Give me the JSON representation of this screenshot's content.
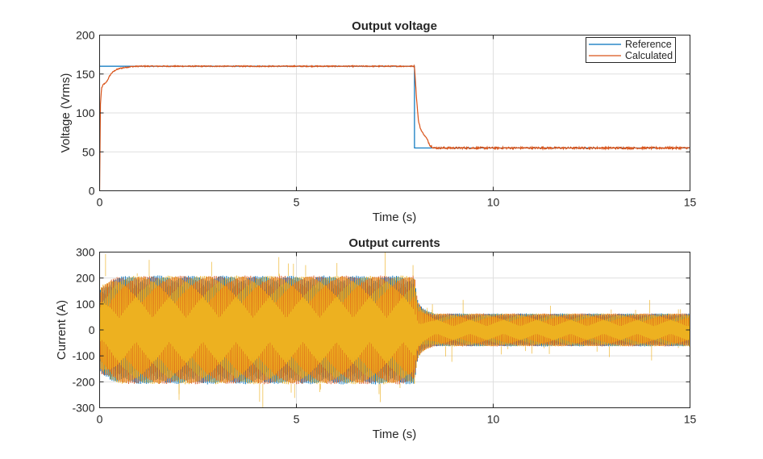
{
  "colors": {
    "reference": "#0072bd",
    "calculated": "#d95319",
    "phase_a": "#0072bd",
    "phase_b": "#d95319",
    "phase_c": "#edb120",
    "axis": "#262626",
    "grid": "#dfdfdf"
  },
  "chart_data": [
    {
      "type": "line",
      "title": "Output voltage",
      "xlabel": "Time (s)",
      "ylabel": "Voltage (Vrms)",
      "xlim": [
        0,
        15
      ],
      "ylim": [
        0,
        200
      ],
      "xticks": [
        0,
        5,
        10,
        15
      ],
      "yticks": [
        0,
        50,
        100,
        150,
        200
      ],
      "grid": true,
      "legend_position": "top-right",
      "series": [
        {
          "name": "Reference",
          "color_key": "reference",
          "x": [
            0,
            8.0,
            8.0,
            15
          ],
          "y": [
            160,
            160,
            55,
            55
          ]
        },
        {
          "name": "Calculated",
          "color_key": "calculated",
          "x": [
            0,
            0.02,
            0.05,
            0.1,
            0.15,
            0.2,
            0.25,
            0.3,
            0.4,
            0.5,
            0.6,
            0.8,
            1.0,
            1.5,
            2.0,
            3.0,
            4.0,
            5.0,
            6.0,
            7.0,
            7.9,
            8.0,
            8.05,
            8.1,
            8.15,
            8.2,
            8.3,
            8.4,
            8.5,
            9.0,
            10.0,
            11.0,
            12.0,
            13.0,
            14.0,
            15.0
          ],
          "y": [
            0,
            110,
            132,
            137,
            138,
            142,
            147,
            151,
            155,
            157,
            158,
            159.5,
            160,
            160,
            160,
            160,
            160,
            160,
            160,
            160,
            160,
            160,
            120,
            90,
            80,
            75,
            68,
            58,
            55,
            55,
            55,
            55,
            55,
            55,
            55,
            55
          ]
        }
      ]
    },
    {
      "type": "line",
      "title": "Output currents",
      "xlabel": "Time (s)",
      "ylabel": "Current (A)",
      "xlim": [
        0,
        15
      ],
      "ylim": [
        -300,
        300
      ],
      "xticks": [
        0,
        5,
        10,
        15
      ],
      "yticks": [
        -300,
        -200,
        -100,
        0,
        100,
        200,
        300
      ],
      "grid": true,
      "description_series": "three-phase currents; amplitude envelope",
      "series": [
        {
          "color_key": "phase_a",
          "envelope_t": [
            0,
            0.05,
            0.1,
            0.2,
            0.3,
            0.5,
            1.0,
            8.0,
            8.05,
            8.1,
            8.2,
            8.3,
            8.5,
            15
          ],
          "envelope_amp": [
            150,
            170,
            175,
            180,
            195,
            205,
            207,
            207,
            140,
            105,
            85,
            75,
            63,
            63
          ]
        },
        {
          "color_key": "phase_b",
          "envelope_t": [
            0,
            0.05,
            0.1,
            0.2,
            0.3,
            0.5,
            1.0,
            8.0,
            8.05,
            8.1,
            8.2,
            8.3,
            8.5,
            15
          ],
          "envelope_amp": [
            150,
            170,
            175,
            180,
            195,
            205,
            207,
            207,
            140,
            105,
            85,
            75,
            63,
            63
          ]
        },
        {
          "color_key": "phase_c",
          "envelope_t": [
            0,
            0.05,
            0.1,
            0.2,
            0.3,
            0.5,
            1.0,
            8.0,
            8.05,
            8.1,
            8.2,
            8.3,
            8.5,
            15
          ],
          "envelope_amp": [
            150,
            170,
            175,
            180,
            195,
            205,
            207,
            207,
            140,
            105,
            85,
            75,
            63,
            63
          ]
        }
      ]
    }
  ]
}
